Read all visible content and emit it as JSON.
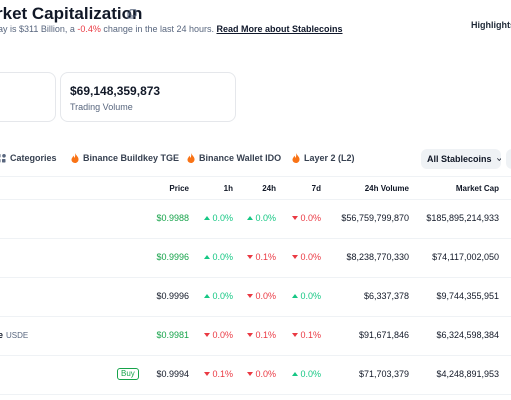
{
  "header": {
    "title": "rket Capitalization",
    "subtitle_prefix": "ay is $311 Billion, a ",
    "subtitle_change": "-0.4%",
    "subtitle_suffix": " change in the last 24 hours. ",
    "subtitle_link": "Read More about Stablecoins",
    "highlights": "Highlights"
  },
  "cards": {
    "trading_volume_value": "$69,148,359,873",
    "trading_volume_label": "Trading Volume"
  },
  "tabs": [
    {
      "label": "Categories"
    },
    {
      "label": "Binance Buildkey TGE"
    },
    {
      "label": "Binance Wallet IDO"
    },
    {
      "label": "Layer 2 (L2)"
    }
  ],
  "filter": {
    "label": "All Stablecoins"
  },
  "table": {
    "headers": {
      "price": "Price",
      "h1": "1h",
      "h24": "24h",
      "d7": "7d",
      "volume": "24h Volume",
      "mcap": "Market Cap"
    },
    "rows": [
      {
        "name": "",
        "symbol": "",
        "buy": "",
        "price": "$0.9988",
        "price_green": true,
        "h1": "0.0%",
        "h1_dir": "up",
        "h24": "0.0%",
        "h24_dir": "up",
        "d7": "0.0%",
        "d7_dir": "down",
        "volume": "$56,759,799,870",
        "mcap": "$185,895,214,933"
      },
      {
        "name": "",
        "symbol": "",
        "buy": "",
        "price": "$0.9996",
        "price_green": true,
        "h1": "0.0%",
        "h1_dir": "up",
        "h24": "0.1%",
        "h24_dir": "down",
        "d7": "0.0%",
        "d7_dir": "down",
        "volume": "$8,238,770,330",
        "mcap": "$74,117,002,050"
      },
      {
        "name": "",
        "symbol": "",
        "buy": "",
        "price": "$0.9996",
        "price_green": false,
        "h1": "0.0%",
        "h1_dir": "up",
        "h24": "0.0%",
        "h24_dir": "down",
        "d7": "0.0%",
        "d7_dir": "up",
        "volume": "$6,337,378",
        "mcap": "$9,744,355,951"
      },
      {
        "name": "e",
        "symbol": "USDE",
        "buy": "",
        "price": "$0.9981",
        "price_green": true,
        "h1": "0.0%",
        "h1_dir": "down",
        "h24": "0.1%",
        "h24_dir": "down",
        "d7": "0.1%",
        "d7_dir": "down",
        "volume": "$91,671,846",
        "mcap": "$6,324,598,384"
      },
      {
        "name": "",
        "symbol": "",
        "buy": "Buy",
        "price": "$0.9994",
        "price_green": false,
        "h1": "0.1%",
        "h1_dir": "down",
        "h24": "0.0%",
        "h24_dir": "down",
        "d7": "0.0%",
        "d7_dir": "up",
        "volume": "$71,703,379",
        "mcap": "$4,248,891,953"
      }
    ]
  },
  "colors": {
    "up": "#16c784",
    "down": "#ea3943",
    "price_green": "#16a34a"
  },
  "icons": {
    "copy": "copy-icon",
    "categories": "categories-icon",
    "fire": "fire-icon",
    "chevron": "chevron-down-icon"
  }
}
